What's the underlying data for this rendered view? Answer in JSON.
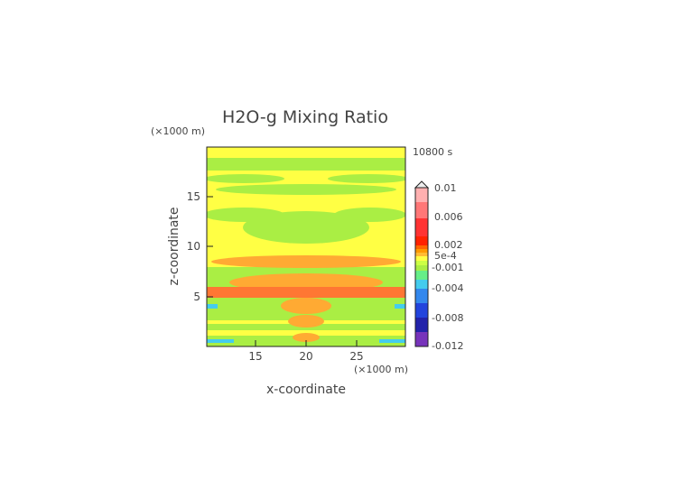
{
  "chart_data": {
    "type": "heatmap",
    "title": "H2O-g Mixing Ratio",
    "xlabel": "x-coordinate",
    "ylabel": "z-coordinate",
    "x_units": "(×1000 m)",
    "y_units": "(×1000 m)",
    "time_label": "10800 s",
    "xlim": [
      10.5,
      29.5
    ],
    "ylim": [
      0,
      20
    ],
    "x_ticks": [
      15,
      20,
      25
    ],
    "y_ticks": [
      5,
      10,
      15
    ],
    "colorbar": {
      "labels": [
        "0.01",
        "0.006",
        "0.002",
        "5e-4",
        "-0.001",
        "-0.004",
        "-0.008",
        "-0.012"
      ],
      "range": [
        -0.012,
        0.01
      ]
    },
    "colors": {
      "background": "#ffff44",
      "green": "#aaee44",
      "cyan": "#44ccee",
      "orange": "#ffaa33",
      "red_orange": "#ff7733"
    }
  }
}
